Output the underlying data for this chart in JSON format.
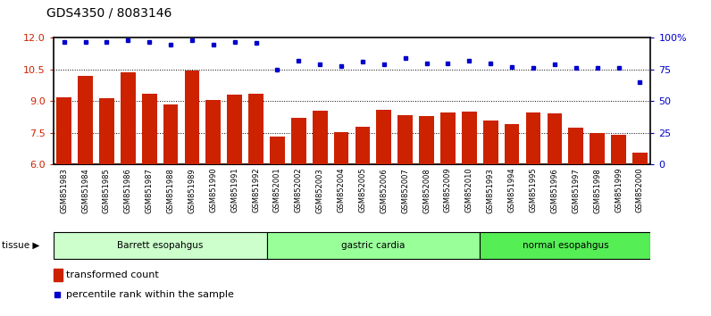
{
  "title": "GDS4350 / 8083146",
  "samples": [
    "GSM851983",
    "GSM851984",
    "GSM851985",
    "GSM851986",
    "GSM851987",
    "GSM851988",
    "GSM851989",
    "GSM851990",
    "GSM851991",
    "GSM851992",
    "GSM852001",
    "GSM852002",
    "GSM852003",
    "GSM852004",
    "GSM852005",
    "GSM852006",
    "GSM852007",
    "GSM852008",
    "GSM852009",
    "GSM852010",
    "GSM851993",
    "GSM851994",
    "GSM851995",
    "GSM851996",
    "GSM851997",
    "GSM851998",
    "GSM851999",
    "GSM852000"
  ],
  "bar_values": [
    9.2,
    10.2,
    9.15,
    10.35,
    9.35,
    8.85,
    10.45,
    9.05,
    9.3,
    9.35,
    7.3,
    8.2,
    8.55,
    7.55,
    7.8,
    8.6,
    8.35,
    8.3,
    8.45,
    8.5,
    8.1,
    7.9,
    8.45,
    8.4,
    7.75,
    7.5,
    7.4,
    6.55
  ],
  "dot_values": [
    97,
    97,
    97,
    98,
    97,
    95,
    98,
    95,
    97,
    96,
    75,
    82,
    79,
    78,
    81,
    79,
    84,
    80,
    80,
    82,
    80,
    77,
    76,
    79,
    76,
    76,
    76,
    65
  ],
  "groups": [
    {
      "label": "Barrett esopahgus",
      "start": 0,
      "end": 10,
      "color": "#ccffcc"
    },
    {
      "label": "gastric cardia",
      "start": 10,
      "end": 20,
      "color": "#99ff99"
    },
    {
      "label": "normal esopahgus",
      "start": 20,
      "end": 28,
      "color": "#55ee55"
    }
  ],
  "bar_color": "#cc2200",
  "dot_color": "#0000cc",
  "ylim_left": [
    6,
    12
  ],
  "ylim_right": [
    0,
    100
  ],
  "yticks_left": [
    6,
    7.5,
    9,
    10.5,
    12
  ],
  "yticks_right": [
    0,
    25,
    50,
    75,
    100
  ],
  "title_fontsize": 10,
  "tick_label_color_left": "#cc2200",
  "tick_label_color_right": "#0000cc"
}
